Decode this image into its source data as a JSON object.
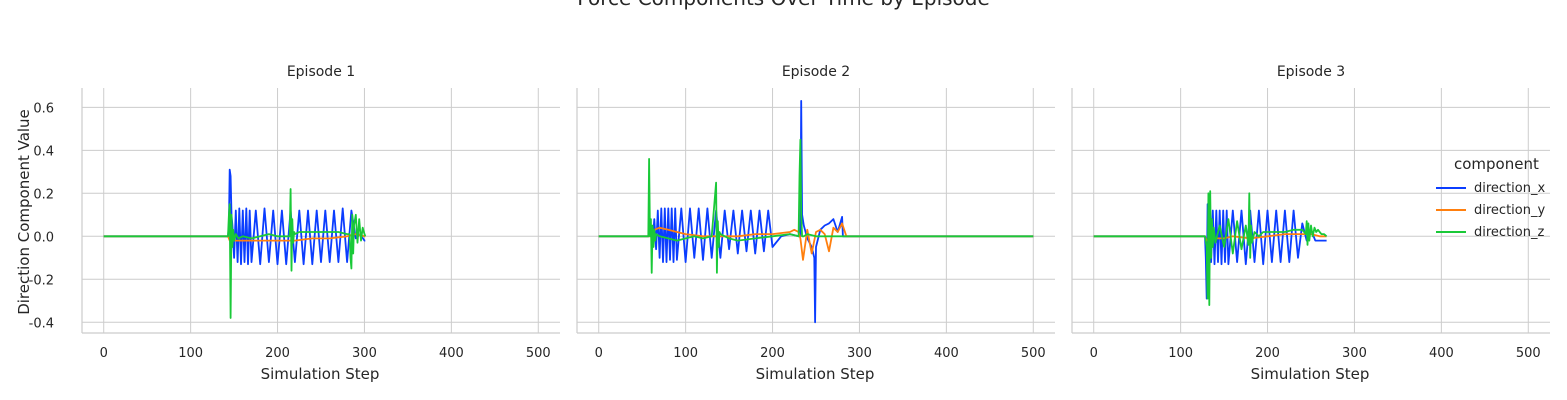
{
  "figure": {
    "title": "Force Components Over Time by Episode"
  },
  "legend": {
    "title": "component",
    "items": [
      {
        "label": "direction_x",
        "color": "#0b3dff"
      },
      {
        "label": "direction_y",
        "color": "#ff7f0e"
      },
      {
        "label": "direction_z",
        "color": "#1ac938"
      }
    ]
  },
  "chart_data": [
    {
      "type": "line",
      "title": "Episode 1",
      "xlabel": "Simulation Step",
      "ylabel": "Direction Component Value",
      "xlim": [
        -25,
        525
      ],
      "ylim": [
        -0.45,
        0.69
      ],
      "xticks": [
        0,
        100,
        200,
        300,
        400,
        500
      ],
      "yticks": [
        -0.4,
        -0.2,
        0.0,
        0.2,
        0.4,
        0.6
      ],
      "grid": true,
      "series": [
        {
          "name": "direction_x",
          "x": [
            0,
            143,
            144,
            145,
            146,
            147,
            148,
            150,
            152,
            154,
            156,
            158,
            160,
            162,
            164,
            166,
            168,
            170,
            175,
            180,
            185,
            190,
            195,
            200,
            205,
            210,
            215,
            220,
            225,
            230,
            235,
            240,
            245,
            250,
            255,
            260,
            265,
            270,
            275,
            280,
            285,
            290,
            295,
            300,
            301
          ],
          "y": [
            0,
            0,
            0.05,
            0.31,
            0.28,
            0.1,
            0.05,
            -0.1,
            0.12,
            -0.12,
            0.13,
            -0.13,
            0.12,
            -0.12,
            0.13,
            -0.13,
            0.12,
            -0.12,
            0.12,
            -0.13,
            0.13,
            -0.12,
            0.12,
            -0.13,
            0.12,
            -0.13,
            0.12,
            -0.12,
            0.12,
            -0.13,
            0.12,
            -0.13,
            0.12,
            -0.12,
            0.12,
            -0.12,
            0.12,
            -0.12,
            0.13,
            -0.12,
            0.12,
            -0.01,
            0.01,
            -0.02,
            -0.02
          ]
        },
        {
          "name": "direction_y",
          "x": [
            0,
            143,
            145,
            147,
            150,
            160,
            170,
            180,
            200,
            220,
            240,
            260,
            280,
            290,
            300,
            301
          ],
          "y": [
            0,
            0,
            -0.02,
            -0.01,
            -0.02,
            -0.02,
            -0.02,
            -0.02,
            -0.02,
            -0.02,
            -0.01,
            -0.01,
            0.0,
            0.01,
            0.0,
            0.0
          ]
        },
        {
          "name": "direction_z",
          "x": [
            0,
            143,
            144,
            145,
            146,
            147,
            148,
            149,
            150,
            152,
            155,
            160,
            170,
            180,
            190,
            200,
            210,
            214,
            215,
            216,
            217,
            218,
            219,
            220,
            225,
            230,
            240,
            250,
            260,
            270,
            280,
            283,
            284,
            285,
            286,
            287,
            288,
            290,
            292,
            294,
            296,
            298,
            300,
            301
          ],
          "y": [
            0,
            0,
            0.1,
            0.15,
            -0.38,
            0.1,
            -0.05,
            0.03,
            -0.02,
            0.01,
            -0.01,
            0.0,
            -0.01,
            0.0,
            0.01,
            0.0,
            0.0,
            0.0,
            0.22,
            -0.16,
            0.08,
            -0.03,
            0.02,
            0.01,
            0.02,
            0.02,
            0.02,
            0.02,
            0.02,
            0.02,
            0.01,
            0.01,
            -0.1,
            -0.15,
            0.1,
            -0.08,
            0.05,
            0.1,
            -0.03,
            0.08,
            -0.02,
            0.04,
            0.01,
            0.0
          ]
        }
      ]
    },
    {
      "type": "line",
      "title": "Episode 2",
      "xlabel": "Simulation Step",
      "ylabel": "",
      "xlim": [
        -25,
        525
      ],
      "ylim": [
        -0.45,
        0.69
      ],
      "xticks": [
        0,
        100,
        200,
        300,
        400,
        500
      ],
      "yticks": [
        -0.4,
        -0.2,
        0.0,
        0.2,
        0.4,
        0.6
      ],
      "grid": true,
      "series": [
        {
          "name": "direction_x",
          "x": [
            0,
            58,
            60,
            62,
            64,
            66,
            68,
            70,
            72,
            74,
            76,
            78,
            80,
            82,
            84,
            86,
            88,
            90,
            95,
            100,
            105,
            110,
            115,
            120,
            125,
            130,
            135,
            140,
            145,
            150,
            155,
            160,
            165,
            170,
            175,
            180,
            185,
            190,
            195,
            200,
            210,
            220,
            230,
            232,
            233,
            234,
            236,
            240,
            245,
            248,
            249,
            250,
            255,
            260,
            265,
            270,
            275,
            280,
            281,
            285,
            300,
            500
          ],
          "y": [
            0,
            0,
            0.01,
            -0.03,
            0.08,
            -0.06,
            0.12,
            -0.1,
            0.13,
            -0.12,
            0.13,
            -0.12,
            0.13,
            -0.11,
            0.13,
            -0.12,
            0.13,
            -0.11,
            0.13,
            -0.12,
            0.13,
            -0.1,
            0.13,
            -0.11,
            0.13,
            -0.1,
            0.12,
            -0.1,
            0.12,
            -0.06,
            0.12,
            -0.08,
            0.12,
            -0.07,
            0.12,
            -0.08,
            0.12,
            -0.07,
            0.12,
            -0.05,
            0.0,
            0.01,
            0.0,
            0.0,
            0.63,
            0.1,
            0.05,
            -0.01,
            -0.05,
            -0.1,
            -0.4,
            -0.05,
            0.03,
            0.05,
            0.06,
            0.08,
            0.02,
            0.09,
            0.0,
            0.0,
            0.0,
            0.0
          ]
        },
        {
          "name": "direction_y",
          "x": [
            0,
            58,
            60,
            64,
            70,
            80,
            90,
            100,
            120,
            140,
            160,
            180,
            200,
            220,
            225,
            230,
            232,
            235,
            240,
            245,
            250,
            255,
            260,
            265,
            270,
            275,
            280,
            285,
            500
          ],
          "y": [
            0,
            0,
            0.01,
            0.03,
            0.04,
            0.03,
            0.02,
            0.01,
            0.0,
            0.0,
            0.0,
            0.01,
            0.01,
            0.02,
            0.03,
            0.02,
            -0.01,
            -0.11,
            0.03,
            -0.08,
            0.02,
            0.03,
            0.01,
            -0.07,
            0.04,
            0.02,
            0.06,
            0.0,
            0.0
          ]
        },
        {
          "name": "direction_z",
          "x": [
            0,
            57,
            58,
            59,
            60,
            61,
            62,
            63,
            64,
            65,
            66,
            70,
            80,
            90,
            100,
            110,
            120,
            130,
            135,
            136,
            137,
            138,
            139,
            140,
            145,
            150,
            160,
            180,
            200,
            220,
            230,
            231,
            232,
            233,
            234,
            236,
            240,
            250,
            260,
            270,
            280,
            290,
            300,
            500
          ],
          "y": [
            0,
            0,
            0.36,
            0.0,
            0.08,
            -0.17,
            0.05,
            -0.05,
            0.03,
            -0.02,
            0.01,
            0.0,
            -0.01,
            -0.02,
            -0.01,
            0.0,
            -0.01,
            0.0,
            0.25,
            -0.17,
            0.07,
            -0.05,
            0.02,
            0.01,
            0.0,
            -0.01,
            -0.02,
            -0.01,
            0.0,
            0.01,
            0.0,
            0.28,
            0.45,
            0.1,
            0.0,
            0.0,
            0.01,
            0.0,
            0.0,
            0.0,
            0.0,
            0.0,
            0.0,
            0.0
          ]
        }
      ]
    },
    {
      "type": "line",
      "title": "Episode 3",
      "xlabel": "Simulation Step",
      "ylabel": "",
      "xlim": [
        -25,
        525
      ],
      "ylim": [
        -0.45,
        0.69
      ],
      "xticks": [
        0,
        100,
        200,
        300,
        400,
        500
      ],
      "yticks": [
        -0.4,
        -0.2,
        0.0,
        0.2,
        0.4,
        0.6
      ],
      "grid": true,
      "series": [
        {
          "name": "direction_x",
          "x": [
            0,
            128,
            129,
            130,
            131,
            132,
            133,
            135,
            137,
            139,
            141,
            143,
            145,
            147,
            149,
            151,
            153,
            155,
            160,
            165,
            170,
            175,
            180,
            185,
            190,
            195,
            200,
            205,
            210,
            215,
            220,
            225,
            230,
            235,
            240,
            245,
            250,
            255,
            260,
            265,
            268
          ],
          "y": [
            0,
            0,
            -0.1,
            -0.29,
            0.15,
            -0.05,
            0.1,
            -0.12,
            0.12,
            -0.13,
            0.12,
            -0.12,
            0.12,
            -0.13,
            0.12,
            -0.12,
            0.12,
            -0.13,
            0.12,
            -0.12,
            0.12,
            -0.13,
            0.12,
            -0.12,
            0.12,
            -0.13,
            0.12,
            -0.12,
            0.12,
            -0.12,
            0.12,
            -0.12,
            0.12,
            -0.1,
            0.06,
            -0.02,
            0.03,
            -0.02,
            -0.02,
            -0.02,
            -0.02
          ]
        },
        {
          "name": "direction_y",
          "x": [
            0,
            128,
            130,
            135,
            140,
            150,
            160,
            180,
            200,
            220,
            240,
            250,
            260,
            268
          ],
          "y": [
            0,
            0,
            -0.02,
            -0.01,
            -0.01,
            -0.01,
            0.0,
            -0.01,
            0.0,
            0.01,
            0.01,
            0.01,
            0.0,
            0.0
          ]
        },
        {
          "name": "direction_z",
          "x": [
            0,
            128,
            130,
            131,
            132,
            133,
            134,
            135,
            136,
            137,
            138,
            140,
            145,
            150,
            155,
            160,
            165,
            170,
            175,
            178,
            179,
            180,
            181,
            182,
            185,
            190,
            195,
            200,
            210,
            220,
            230,
            240,
            244,
            245,
            246,
            247,
            248,
            250,
            252,
            254,
            256,
            258,
            260,
            262,
            265,
            268
          ],
          "y": [
            0,
            0,
            -0.05,
            -0.29,
            0.2,
            -0.32,
            0.21,
            -0.1,
            0.08,
            -0.05,
            0.04,
            -0.03,
            0.05,
            -0.05,
            0.08,
            -0.08,
            0.07,
            -0.06,
            0.05,
            -0.04,
            0.2,
            -0.1,
            0.05,
            -0.03,
            0.02,
            0.0,
            0.02,
            0.02,
            0.02,
            0.02,
            0.03,
            0.03,
            0.01,
            0.07,
            -0.04,
            0.06,
            -0.02,
            0.05,
            0.0,
            0.04,
            0.02,
            0.03,
            0.02,
            0.01,
            0.01,
            0.0
          ]
        }
      ]
    }
  ]
}
